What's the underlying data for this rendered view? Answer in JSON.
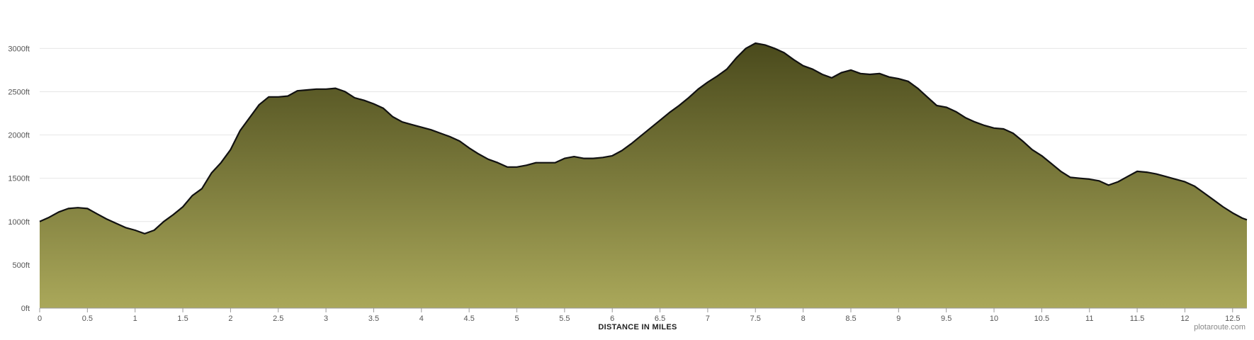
{
  "credit": "plotaroute.com",
  "colors": {
    "fill_top": "#4a4a1c",
    "fill_bottom": "#aaa85a",
    "line": "#111111",
    "grid": "#e6e6e6",
    "axis": "#999999"
  },
  "chart_data": {
    "type": "area",
    "title": "",
    "xlabel": "DISTANCE IN MILES",
    "ylabel": "",
    "y_unit": "ft",
    "xlim": [
      0,
      12.65
    ],
    "ylim": [
      0,
      3000
    ],
    "xticks": [
      0,
      0.5,
      1,
      1.5,
      2,
      2.5,
      3,
      3.5,
      4,
      4.5,
      5,
      5.5,
      6,
      6.5,
      7,
      7.5,
      8,
      8.5,
      9,
      9.5,
      10,
      10.5,
      11,
      11.5,
      12,
      12.5
    ],
    "xtick_labels": [
      "0",
      "0.5",
      "1",
      "1.5",
      "2",
      "2.5",
      "3",
      "3.5",
      "4",
      "4.5",
      "5",
      "5.5",
      "6",
      "6.5",
      "7",
      "7.5",
      "8",
      "8.5",
      "9",
      "9.5",
      "10",
      "10.5",
      "11",
      "11.5",
      "12",
      "12.5"
    ],
    "yticks": [
      0,
      500,
      1000,
      1500,
      2000,
      2500,
      3000
    ],
    "ytick_labels": [
      "0ft",
      "500ft",
      "1000ft",
      "1500ft",
      "2000ft",
      "2500ft",
      "3000ft"
    ],
    "grid": "horizontal",
    "x": [
      0,
      0.1,
      0.2,
      0.3,
      0.4,
      0.5,
      0.6,
      0.7,
      0.8,
      0.9,
      1.0,
      1.1,
      1.2,
      1.3,
      1.4,
      1.5,
      1.6,
      1.7,
      1.8,
      1.9,
      2.0,
      2.1,
      2.2,
      2.3,
      2.4,
      2.5,
      2.6,
      2.7,
      2.8,
      2.9,
      3.0,
      3.1,
      3.2,
      3.3,
      3.4,
      3.5,
      3.6,
      3.7,
      3.8,
      3.9,
      4.0,
      4.1,
      4.2,
      4.3,
      4.4,
      4.5,
      4.6,
      4.7,
      4.8,
      4.9,
      5.0,
      5.1,
      5.2,
      5.3,
      5.4,
      5.5,
      5.6,
      5.7,
      5.8,
      5.9,
      6.0,
      6.1,
      6.2,
      6.3,
      6.4,
      6.5,
      6.6,
      6.7,
      6.8,
      6.9,
      7.0,
      7.1,
      7.2,
      7.3,
      7.4,
      7.5,
      7.6,
      7.7,
      7.8,
      7.9,
      8.0,
      8.1,
      8.2,
      8.3,
      8.4,
      8.5,
      8.6,
      8.7,
      8.8,
      8.9,
      9.0,
      9.1,
      9.2,
      9.3,
      9.4,
      9.5,
      9.6,
      9.7,
      9.8,
      9.9,
      10.0,
      10.1,
      10.2,
      10.3,
      10.4,
      10.5,
      10.6,
      10.7,
      10.8,
      10.9,
      11.0,
      11.1,
      11.2,
      11.3,
      11.4,
      11.5,
      11.6,
      11.7,
      11.8,
      11.9,
      12.0,
      12.1,
      12.2,
      12.3,
      12.4,
      12.5,
      12.6,
      12.65
    ],
    "y": [
      1000,
      1050,
      1110,
      1150,
      1160,
      1150,
      1090,
      1030,
      980,
      930,
      900,
      860,
      900,
      1000,
      1080,
      1170,
      1300,
      1380,
      1560,
      1680,
      1830,
      2050,
      2200,
      2350,
      2440,
      2440,
      2450,
      2510,
      2520,
      2530,
      2530,
      2540,
      2500,
      2430,
      2400,
      2360,
      2310,
      2210,
      2150,
      2120,
      2090,
      2060,
      2020,
      1980,
      1930,
      1850,
      1780,
      1720,
      1680,
      1630,
      1630,
      1650,
      1680,
      1680,
      1680,
      1730,
      1750,
      1730,
      1730,
      1740,
      1760,
      1820,
      1900,
      1990,
      2080,
      2170,
      2260,
      2340,
      2430,
      2530,
      2610,
      2680,
      2760,
      2890,
      3000,
      3060,
      3040,
      3000,
      2950,
      2870,
      2800,
      2760,
      2700,
      2660,
      2720,
      2750,
      2710,
      2700,
      2710,
      2670,
      2650,
      2620,
      2540,
      2440,
      2340,
      2320,
      2270,
      2200,
      2150,
      2110,
      2080,
      2070,
      2020,
      1930,
      1830,
      1760,
      1670,
      1580,
      1510,
      1500,
      1490,
      1470,
      1420,
      1460,
      1520,
      1580,
      1570,
      1550,
      1520,
      1490,
      1460,
      1410,
      1330,
      1250,
      1170,
      1100,
      1040,
      1020
    ]
  }
}
